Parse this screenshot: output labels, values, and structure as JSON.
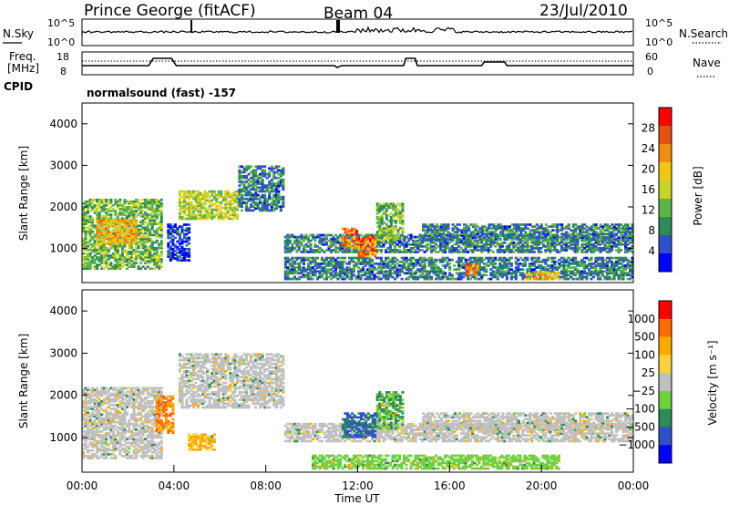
{
  "header": {
    "station": "Prince George (fitACF)",
    "beam": "Beam 04",
    "date": "23/Jul/2010"
  },
  "noise_panel": {
    "left_label": "N.Sky",
    "left_ticks": [
      "10^5",
      "10^0"
    ],
    "right_label": "N.Search",
    "right_ticks": [
      "10^5",
      "10^0"
    ]
  },
  "freq_panel": {
    "left_label_1": "Freq.",
    "left_label_2": "[MHz]",
    "left_ticks": [
      "18",
      "8"
    ],
    "right_label": "Nave",
    "right_ticks": [
      "60",
      "0"
    ]
  },
  "cpid": {
    "label": "CPID",
    "text": "normalsound (fast) -157"
  },
  "colors": {
    "power": [
      "#0000ff",
      "#3050c8",
      "#2e8a58",
      "#5fb448",
      "#c8d228",
      "#f0c814",
      "#f08c14",
      "#e65014",
      "#ff0000"
    ],
    "velocity": [
      "#ff0000",
      "#ff6a00",
      "#ffaa00",
      "#ffd040",
      "#c0c0c0",
      "#70d040",
      "#2e8a58",
      "#3050c8",
      "#0000ff"
    ]
  },
  "chart_data": [
    {
      "type": "heatmap",
      "name": "power",
      "xlabel": "",
      "ylabel": "Slant Range [km]",
      "yticks": [
        "1000",
        "2000",
        "3000",
        "4000"
      ],
      "ylim": [
        180,
        4500
      ],
      "xlim_hours": [
        0,
        24
      ],
      "colorbar_label": "Power [dB]",
      "colorbar_ticks": [
        "4",
        "8",
        "12",
        "16",
        "20",
        "24",
        "28"
      ],
      "regions": [
        {
          "x0": 0.0,
          "x1": 3.5,
          "r0": 500,
          "r1": 2200,
          "v": 12
        },
        {
          "x0": 0.6,
          "x1": 2.4,
          "r0": 1100,
          "r1": 1700,
          "v": 20
        },
        {
          "x0": 4.2,
          "x1": 6.8,
          "r0": 1700,
          "r1": 2400,
          "v": 16
        },
        {
          "x0": 6.8,
          "x1": 8.8,
          "r0": 1900,
          "r1": 3000,
          "v": 8
        },
        {
          "x0": 3.7,
          "x1": 4.7,
          "r0": 700,
          "r1": 1600,
          "v": 4
        },
        {
          "x0": 8.8,
          "x1": 24.0,
          "r0": 250,
          "r1": 800,
          "v": 8
        },
        {
          "x0": 8.8,
          "x1": 24.0,
          "r0": 900,
          "r1": 1350,
          "v": 8
        },
        {
          "x0": 11.3,
          "x1": 12.0,
          "r0": 1000,
          "r1": 1500,
          "v": 24
        },
        {
          "x0": 12.0,
          "x1": 12.8,
          "r0": 800,
          "r1": 1300,
          "v": 24
        },
        {
          "x0": 14.8,
          "x1": 24.0,
          "r0": 1200,
          "r1": 1600,
          "v": 8
        },
        {
          "x0": 16.7,
          "x1": 17.3,
          "r0": 350,
          "r1": 650,
          "v": 24
        },
        {
          "x0": 19.3,
          "x1": 20.8,
          "r0": 250,
          "r1": 450,
          "v": 20
        },
        {
          "x0": 12.8,
          "x1": 14.0,
          "r0": 1200,
          "r1": 2100,
          "v": 12
        }
      ]
    },
    {
      "type": "heatmap",
      "name": "velocity",
      "xlabel": "Time UT",
      "ylabel": "Slant Range [km]",
      "yticks": [
        "1000",
        "2000",
        "3000",
        "4000"
      ],
      "ylim": [
        180,
        4500
      ],
      "xlim_hours": [
        0,
        24
      ],
      "xticks": [
        "00:00",
        "04:00",
        "08:00",
        "12:00",
        "16:00",
        "20:00",
        "00:00"
      ],
      "colorbar_label": "Velocity [m s⁻¹]",
      "colorbar_ticks": [
        "1000",
        "500",
        "100",
        "25",
        "−25",
        "−100",
        "−500",
        "−1000"
      ],
      "regions": [
        {
          "x0": 0.0,
          "x1": 3.5,
          "r0": 500,
          "r1": 2200,
          "v": 0
        },
        {
          "x0": 4.2,
          "x1": 8.8,
          "r0": 1700,
          "r1": 3000,
          "v": 0
        },
        {
          "x0": 3.2,
          "x1": 4.0,
          "r0": 1100,
          "r1": 2000,
          "v": -500
        },
        {
          "x0": 4.6,
          "x1": 5.8,
          "r0": 700,
          "r1": 1100,
          "v": -100
        },
        {
          "x0": 8.8,
          "x1": 24.0,
          "r0": 900,
          "r1": 1350,
          "v": 0
        },
        {
          "x0": 11.3,
          "x1": 12.8,
          "r0": 1000,
          "r1": 1600,
          "v": 500
        },
        {
          "x0": 12.8,
          "x1": 14.0,
          "r0": 1200,
          "r1": 2100,
          "v": 100
        },
        {
          "x0": 10.0,
          "x1": 20.8,
          "r0": 250,
          "r1": 600,
          "v": 50
        },
        {
          "x0": 14.8,
          "x1": 24.0,
          "r0": 1200,
          "r1": 1600,
          "v": 0
        }
      ]
    }
  ]
}
